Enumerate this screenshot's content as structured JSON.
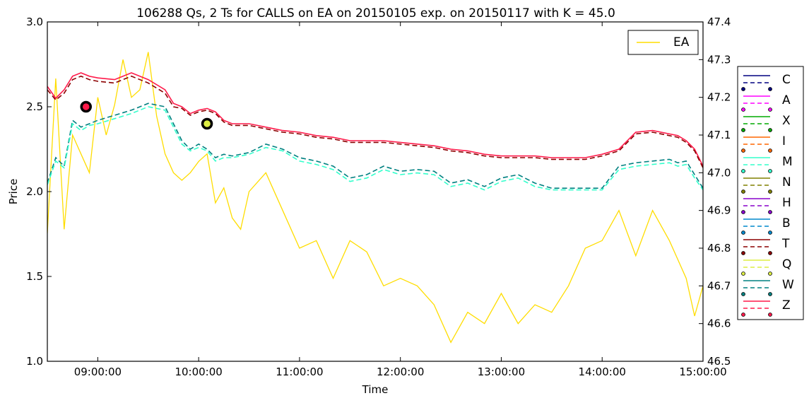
{
  "chart_data": {
    "type": "line",
    "title": "106288 Qs, 2 Ts for CALLS on EA on 20150105 exp. on 20150117 with K = 45.0",
    "xlabel": "Time",
    "ylabel": "Price",
    "xlim": [
      "08:30:00",
      "15:00:00"
    ],
    "ylim": [
      1.0,
      3.0
    ],
    "y2lim": [
      46.5,
      47.4
    ],
    "x_ticks": [
      "09:00:00",
      "10:00:00",
      "11:00:00",
      "12:00:00",
      "13:00:00",
      "14:00:00",
      "15:00:00"
    ],
    "y_ticks": [
      "1.0",
      "1.5",
      "2.0",
      "2.5",
      "3.0"
    ],
    "y2_ticks": [
      "46.5",
      "46.6",
      "46.7",
      "46.8",
      "46.9",
      "47.0",
      "47.1",
      "47.2",
      "47.3",
      "47.4"
    ],
    "legend_underlying": {
      "label": "EA",
      "color": "#ffdd00",
      "position": "upper right inside"
    },
    "legend_exchanges": {
      "position": "right outside",
      "items": [
        {
          "label": "C",
          "color": "#000080"
        },
        {
          "label": "A",
          "color": "#ff00ff"
        },
        {
          "label": "X",
          "color": "#00aa00"
        },
        {
          "label": "I",
          "color": "#ff6600"
        },
        {
          "label": "M",
          "color": "#33ffcc"
        },
        {
          "label": "N",
          "color": "#808000"
        },
        {
          "label": "H",
          "color": "#8800cc"
        },
        {
          "label": "B",
          "color": "#0088cc"
        },
        {
          "label": "T",
          "color": "#8b0000"
        },
        {
          "label": "Q",
          "color": "#ddee44"
        },
        {
          "label": "W",
          "color": "#008080"
        },
        {
          "label": "Z",
          "color": "#ff1a4a"
        }
      ]
    },
    "series": [
      {
        "name": "EA",
        "axis": "right",
        "color": "#ffdd00",
        "x": [
          "08:30",
          "08:35",
          "08:40",
          "08:45",
          "08:50",
          "08:55",
          "09:00",
          "09:05",
          "09:10",
          "09:15",
          "09:20",
          "09:25",
          "09:30",
          "09:35",
          "09:40",
          "09:45",
          "09:50",
          "09:55",
          "10:00",
          "10:05",
          "10:10",
          "10:15",
          "10:20",
          "10:25",
          "10:30",
          "10:40",
          "10:50",
          "11:00",
          "11:10",
          "11:20",
          "11:30",
          "11:40",
          "11:50",
          "12:00",
          "12:10",
          "12:20",
          "12:30",
          "12:40",
          "12:50",
          "13:00",
          "13:10",
          "13:20",
          "13:30",
          "13:40",
          "13:50",
          "14:00",
          "14:10",
          "14:20",
          "14:30",
          "14:40",
          "14:45",
          "14:50",
          "14:55",
          "15:00"
        ],
        "y": [
          46.84,
          47.25,
          46.85,
          47.1,
          47.05,
          47.0,
          47.2,
          47.1,
          47.18,
          47.3,
          47.2,
          47.22,
          47.32,
          47.15,
          47.05,
          47.0,
          46.98,
          47.0,
          47.03,
          47.05,
          46.92,
          46.96,
          46.88,
          46.85,
          46.95,
          47.0,
          46.9,
          46.8,
          46.82,
          46.72,
          46.82,
          46.79,
          46.7,
          46.72,
          46.7,
          46.65,
          46.55,
          46.63,
          46.6,
          46.68,
          46.6,
          46.65,
          46.63,
          46.7,
          46.8,
          46.82,
          46.9,
          46.78,
          46.9,
          46.82,
          46.77,
          46.72,
          46.62,
          46.7
        ]
      },
      {
        "name": "Z",
        "color": "#ff1a4a",
        "dash": false,
        "x": [
          "08:30",
          "08:35",
          "08:40",
          "08:45",
          "08:50",
          "08:55",
          "09:00",
          "09:10",
          "09:20",
          "09:30",
          "09:40",
          "09:45",
          "09:50",
          "09:55",
          "10:00",
          "10:05",
          "10:10",
          "10:15",
          "10:20",
          "10:30",
          "10:40",
          "10:50",
          "11:00",
          "11:10",
          "11:20",
          "11:30",
          "11:40",
          "11:50",
          "12:00",
          "12:10",
          "12:20",
          "12:30",
          "12:40",
          "12:50",
          "13:00",
          "13:10",
          "13:20",
          "13:30",
          "13:40",
          "13:50",
          "14:00",
          "14:10",
          "14:20",
          "14:30",
          "14:40",
          "14:45",
          "14:50",
          "14:55",
          "15:00"
        ],
        "y": [
          2.62,
          2.55,
          2.6,
          2.68,
          2.7,
          2.68,
          2.67,
          2.66,
          2.7,
          2.66,
          2.6,
          2.52,
          2.5,
          2.46,
          2.48,
          2.49,
          2.47,
          2.42,
          2.4,
          2.4,
          2.38,
          2.36,
          2.35,
          2.33,
          2.32,
          2.3,
          2.3,
          2.3,
          2.29,
          2.28,
          2.27,
          2.25,
          2.24,
          2.22,
          2.21,
          2.21,
          2.21,
          2.2,
          2.2,
          2.2,
          2.22,
          2.25,
          2.35,
          2.36,
          2.34,
          2.33,
          2.3,
          2.25,
          2.15
        ]
      },
      {
        "name": "T",
        "color": "#8b0000",
        "dash": true,
        "x": [
          "08:30",
          "08:35",
          "08:40",
          "08:45",
          "08:50",
          "08:55",
          "09:00",
          "09:10",
          "09:20",
          "09:30",
          "09:40",
          "09:45",
          "09:50",
          "09:55",
          "10:00",
          "10:05",
          "10:10",
          "10:15",
          "10:20",
          "10:30",
          "10:40",
          "10:50",
          "11:00",
          "11:10",
          "11:20",
          "11:30",
          "11:40",
          "11:50",
          "12:00",
          "12:10",
          "12:20",
          "12:30",
          "12:40",
          "12:50",
          "13:00",
          "13:10",
          "13:20",
          "13:30",
          "13:40",
          "13:50",
          "14:00",
          "14:10",
          "14:20",
          "14:30",
          "14:40",
          "14:45",
          "14:50",
          "14:55",
          "15:00"
        ],
        "y": [
          2.6,
          2.54,
          2.58,
          2.66,
          2.68,
          2.66,
          2.65,
          2.64,
          2.68,
          2.64,
          2.58,
          2.5,
          2.49,
          2.45,
          2.47,
          2.48,
          2.46,
          2.41,
          2.39,
          2.39,
          2.37,
          2.35,
          2.34,
          2.32,
          2.31,
          2.29,
          2.29,
          2.29,
          2.28,
          2.27,
          2.26,
          2.24,
          2.23,
          2.21,
          2.2,
          2.2,
          2.2,
          2.19,
          2.19,
          2.19,
          2.21,
          2.24,
          2.34,
          2.35,
          2.33,
          2.32,
          2.29,
          2.24,
          2.14
        ]
      },
      {
        "name": "W",
        "color": "#008080",
        "dash": true,
        "x": [
          "08:30",
          "08:35",
          "08:40",
          "08:45",
          "08:50",
          "08:55",
          "09:00",
          "09:10",
          "09:20",
          "09:30",
          "09:40",
          "09:45",
          "09:50",
          "09:55",
          "10:00",
          "10:05",
          "10:10",
          "10:15",
          "10:20",
          "10:30",
          "10:40",
          "10:50",
          "11:00",
          "11:10",
          "11:20",
          "11:30",
          "11:40",
          "11:50",
          "12:00",
          "12:10",
          "12:20",
          "12:30",
          "12:40",
          "12:50",
          "13:00",
          "13:10",
          "13:20",
          "13:30",
          "13:40",
          "13:50",
          "14:00",
          "14:10",
          "14:20",
          "14:30",
          "14:40",
          "14:45",
          "14:50",
          "14:55",
          "15:00"
        ],
        "y": [
          2.05,
          2.2,
          2.15,
          2.42,
          2.38,
          2.4,
          2.42,
          2.45,
          2.48,
          2.52,
          2.5,
          2.4,
          2.3,
          2.25,
          2.28,
          2.25,
          2.2,
          2.22,
          2.21,
          2.23,
          2.28,
          2.25,
          2.2,
          2.18,
          2.15,
          2.08,
          2.1,
          2.15,
          2.12,
          2.13,
          2.12,
          2.05,
          2.07,
          2.03,
          2.08,
          2.1,
          2.05,
          2.02,
          2.02,
          2.02,
          2.02,
          2.15,
          2.17,
          2.18,
          2.19,
          2.17,
          2.18,
          2.1,
          2.02
        ]
      },
      {
        "name": "M",
        "color": "#33ffcc",
        "dash": true,
        "x": [
          "08:30",
          "08:35",
          "08:40",
          "08:45",
          "08:50",
          "08:55",
          "09:00",
          "09:10",
          "09:20",
          "09:30",
          "09:40",
          "09:45",
          "09:50",
          "09:55",
          "10:00",
          "10:05",
          "10:10",
          "10:15",
          "10:20",
          "10:30",
          "10:40",
          "10:50",
          "11:00",
          "11:10",
          "11:20",
          "11:30",
          "11:40",
          "11:50",
          "12:00",
          "12:10",
          "12:20",
          "12:30",
          "12:40",
          "12:50",
          "13:00",
          "13:10",
          "13:20",
          "13:30",
          "13:40",
          "13:50",
          "14:00",
          "14:10",
          "14:20",
          "14:30",
          "14:40",
          "14:45",
          "14:50",
          "14:55",
          "15:00"
        ],
        "y": [
          2.04,
          2.18,
          2.14,
          2.4,
          2.36,
          2.39,
          2.4,
          2.43,
          2.46,
          2.5,
          2.48,
          2.38,
          2.28,
          2.24,
          2.26,
          2.24,
          2.18,
          2.2,
          2.2,
          2.22,
          2.26,
          2.24,
          2.18,
          2.16,
          2.13,
          2.06,
          2.08,
          2.13,
          2.1,
          2.11,
          2.1,
          2.03,
          2.05,
          2.01,
          2.06,
          2.08,
          2.03,
          2.01,
          2.01,
          2.01,
          2.01,
          2.13,
          2.15,
          2.16,
          2.17,
          2.15,
          2.16,
          2.08,
          2.01
        ]
      }
    ],
    "markers": [
      {
        "x": "08:53",
        "y": 2.5,
        "fill": "#ff1a4a",
        "edge": "#000000",
        "label": "trade"
      },
      {
        "x": "10:05",
        "y": 2.4,
        "fill": "#ddee44",
        "edge": "#000000",
        "label": "trade"
      }
    ]
  }
}
